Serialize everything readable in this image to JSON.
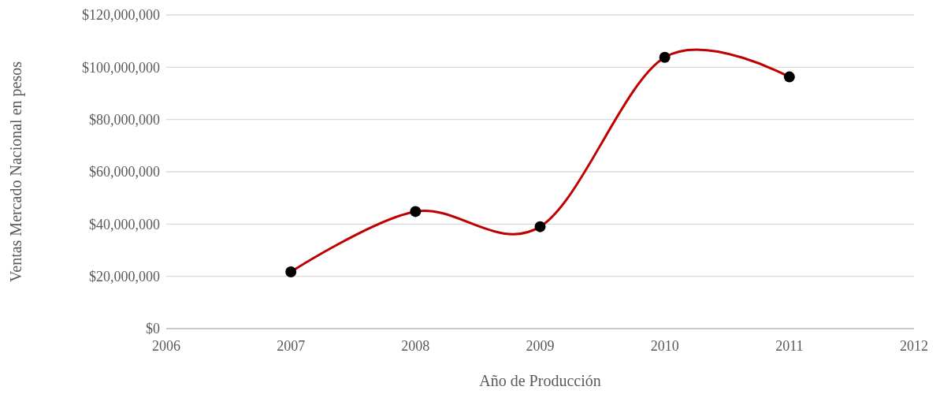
{
  "chart_data": {
    "type": "line",
    "xlabel": "Año de Producción",
    "ylabel": "Ventas Mercado Nacional en pesos",
    "x": [
      2007,
      2008,
      2009,
      2010,
      2011
    ],
    "series": [
      {
        "color": "#c00000",
        "values": [
          21700000,
          44800000,
          39000000,
          103800000,
          96300000
        ]
      }
    ],
    "xlim": [
      2006,
      2012
    ],
    "xticks": [
      2006,
      2007,
      2008,
      2009,
      2010,
      2011,
      2012
    ],
    "ylim": [
      0,
      120000000
    ],
    "yticks": [
      {
        "value": 0,
        "label": "$0"
      },
      {
        "value": 20000000,
        "label": "$20,000,000"
      },
      {
        "value": 40000000,
        "label": "$40,000,000"
      },
      {
        "value": 60000000,
        "label": "$60,000,000"
      },
      {
        "value": 80000000,
        "label": "$80,000,000"
      },
      {
        "value": 100000000,
        "label": "$100,000,000"
      },
      {
        "value": 120000000,
        "label": "$120,000,000"
      }
    ],
    "grid": "y",
    "marker": "circle",
    "line_style": "solid"
  }
}
